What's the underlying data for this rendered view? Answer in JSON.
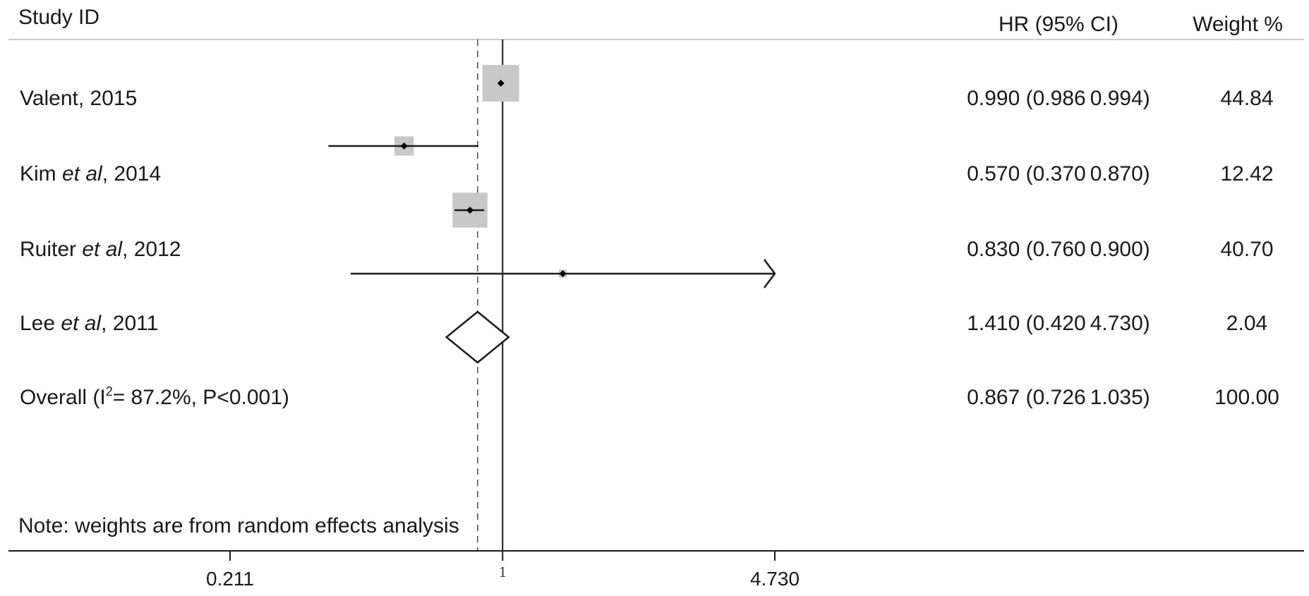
{
  "chart_data": {
    "type": "forest",
    "scale": "log",
    "headers": {
      "study": "Study ID",
      "estimate": "HR (95% CI)",
      "weight": "Weight %"
    },
    "studies": [
      {
        "name": "Valent",
        "et_al": "",
        "year": ", 2015",
        "hr": 0.99,
        "lower": 0.986,
        "upper": 0.994,
        "estimate_label": "0.990 (0.986 0.994)",
        "weight": 44.84,
        "weight_label": "44.84"
      },
      {
        "name": "Kim ",
        "et_al": "et al",
        "year": ", 2014",
        "hr": 0.57,
        "lower": 0.37,
        "upper": 0.87,
        "estimate_label": "0.570 (0.370 0.870)",
        "weight": 12.42,
        "weight_label": "12.42"
      },
      {
        "name": "Ruiter ",
        "et_al": "et al",
        "year": ", 2012",
        "hr": 0.83,
        "lower": 0.76,
        "upper": 0.9,
        "estimate_label": "0.830 (0.760 0.900)",
        "weight": 40.7,
        "weight_label": "40.70"
      },
      {
        "name": "Lee ",
        "et_al": "et al",
        "year": ", 2011",
        "hr": 1.41,
        "lower": 0.42,
        "upper": 4.73,
        "estimate_label": "1.410 (0.420 4.730)",
        "weight": 2.04,
        "weight_label": "2.04"
      }
    ],
    "overall": {
      "label_prefix": "Overall (I",
      "label_sup": "2",
      "label_suffix": "= 87.2%, P<0.001)",
      "hr": 0.867,
      "lower": 0.726,
      "upper": 1.035,
      "estimate_label": "0.867 (0.726 1.035)",
      "weight_label": "100.00"
    },
    "note": "Note: weights are from random effects analysis",
    "x_ticks": [
      {
        "value": 0.211,
        "label": "0.211"
      },
      {
        "value": 1,
        "label": "1"
      },
      {
        "value": 4.73,
        "label": "4.730"
      }
    ],
    "xlim": [
      0.211,
      4.73
    ],
    "null_line": 1,
    "colors": {
      "box": "#c8c8c8",
      "line": "#1a1a1a",
      "dashed": "#555555",
      "header_rule": "#cccccc"
    }
  }
}
